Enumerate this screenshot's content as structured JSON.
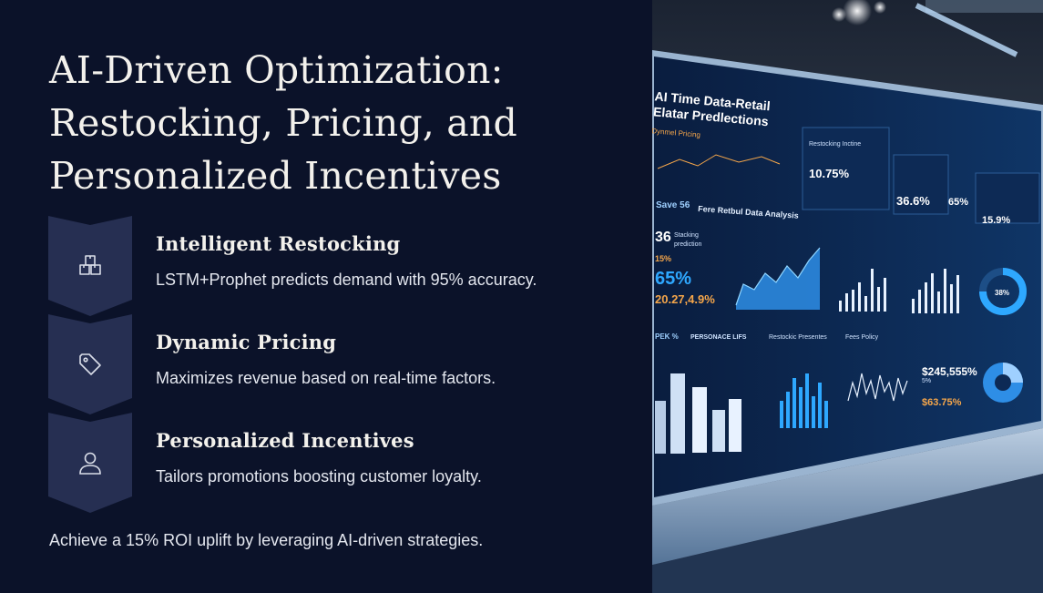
{
  "title": "AI-Driven Optimization: Restocking, Pricing, and Personalized Incentives",
  "steps": [
    {
      "icon": "box-icon",
      "title": "Intelligent Restocking",
      "description": "LSTM+Prophet predicts demand with 95% accuracy."
    },
    {
      "icon": "tag-icon",
      "title": "Dynamic Pricing",
      "description": "Maximizes revenue based on real-time factors."
    },
    {
      "icon": "user-icon",
      "title": "Personalized Incentives",
      "description": "Tailors promotions boosting customer loyalty."
    }
  ],
  "footer": "Achieve a 15% ROI uplift by leveraging AI-driven strategies.",
  "image": {
    "screen_title_1": "AI Time Data-Retail",
    "screen_title_2": "Elatar Predlections",
    "labels": {
      "dynamic_pricing": "Dynmel Pricing",
      "restocking": "Restocking Inctine",
      "save": "Save 56",
      "analysis": "Fere Retbul Data Analysis",
      "stacking": "Stacking",
      "prediction": "prediction",
      "personal": "PERSONACE LIFS",
      "restocking_presence": "Restockic Presentes",
      "fees_policy": "Fees Policy",
      "pek": "PEK %",
      "pct_15": "15%",
      "pct_5": "5%"
    },
    "values": {
      "v1": "10.75%",
      "v2": "36.6%",
      "v3": "65%",
      "v4": "15.9%",
      "v5": "36",
      "v6": "65%",
      "v7": "20.27,4.9%",
      "v8": "$245,555%",
      "v9": "$63.75%",
      "v10": "38%"
    },
    "colors": {
      "accent": "#2ea8ff",
      "orange": "#f5a64a",
      "panel": "#0d2a55"
    }
  },
  "colors": {
    "background": "#0b1229",
    "chevron": "#262f52",
    "text": "#f3f1ec"
  }
}
